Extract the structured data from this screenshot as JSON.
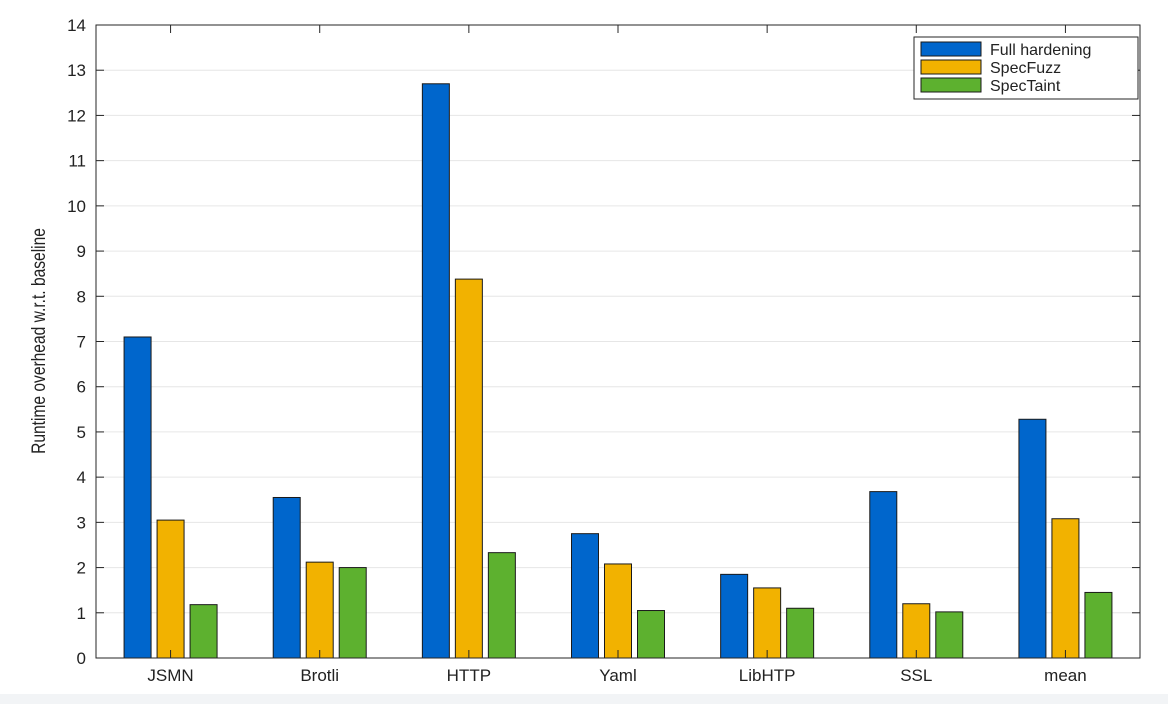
{
  "chart_data": {
    "type": "bar",
    "title": "",
    "xlabel": "",
    "ylabel": "Runtime overhead w.r.t. baseline",
    "categories": [
      "JSMN",
      "Brotli",
      "HTTP",
      "Yaml",
      "LibHTP",
      "SSL",
      "mean"
    ],
    "series": [
      {
        "name": "Full hardening",
        "color": "#0066cc",
        "values": [
          7.1,
          3.55,
          12.7,
          2.75,
          1.85,
          3.68,
          5.28
        ]
      },
      {
        "name": "SpecFuzz",
        "color": "#f2b200",
        "values": [
          3.05,
          2.12,
          8.38,
          2.08,
          1.55,
          1.2,
          3.08
        ]
      },
      {
        "name": "SpecTaint",
        "color": "#5db12f",
        "values": [
          1.18,
          2.0,
          2.33,
          1.05,
          1.1,
          1.02,
          1.45
        ]
      }
    ],
    "ylim": [
      0,
      14
    ],
    "yticks": [
      0,
      1,
      2,
      3,
      4,
      5,
      6,
      7,
      8,
      9,
      10,
      11,
      12,
      13,
      14
    ],
    "grid": true,
    "legend_position": "top-right"
  }
}
